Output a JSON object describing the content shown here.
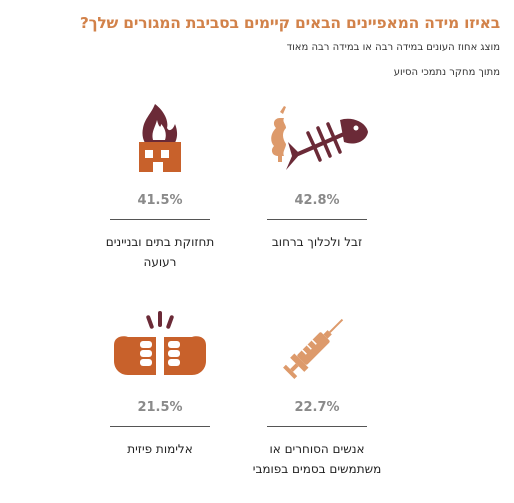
{
  "header": {
    "title": "באיזו מידה המאפיינים הבאים קיימים בסביבת המגורים שלך?",
    "subtitle": "מוצג אחוז העונים במידה רבה או במידה רבה מאוד",
    "source": "מתוך מחקר נתמכי הסיוע"
  },
  "colors": {
    "title": "#d2824a",
    "icon_dark": "#6b2a37",
    "icon_orange": "#c8612b",
    "icon_tan": "#dd9a6b",
    "value_text": "#8a8a8a"
  },
  "chart_data": {
    "type": "table",
    "title": "באיזו מידה המאפיינים הבאים קיימים בסביבת המגורים שלך?",
    "subtitle": "מוצג אחוז העונים במידה רבה או במידה רבה מאוד",
    "items": [
      {
        "label": "זבל ולכלוך ברחוב",
        "value": 42.8,
        "display": "42.8%",
        "icon": "trash-fish-bone-icon"
      },
      {
        "label": "תחזוקת בתים ובניינים רעועה",
        "value": 41.5,
        "display": "41.5%",
        "icon": "burning-building-icon"
      },
      {
        "label": "אנשים הסוחרים או משתמשים בסמים בפומבי",
        "value": 22.7,
        "display": "22.7%",
        "icon": "syringe-icon"
      },
      {
        "label": "אלימות פיזית",
        "value": 21.5,
        "display": "21.5%",
        "icon": "fists-icon"
      }
    ]
  }
}
